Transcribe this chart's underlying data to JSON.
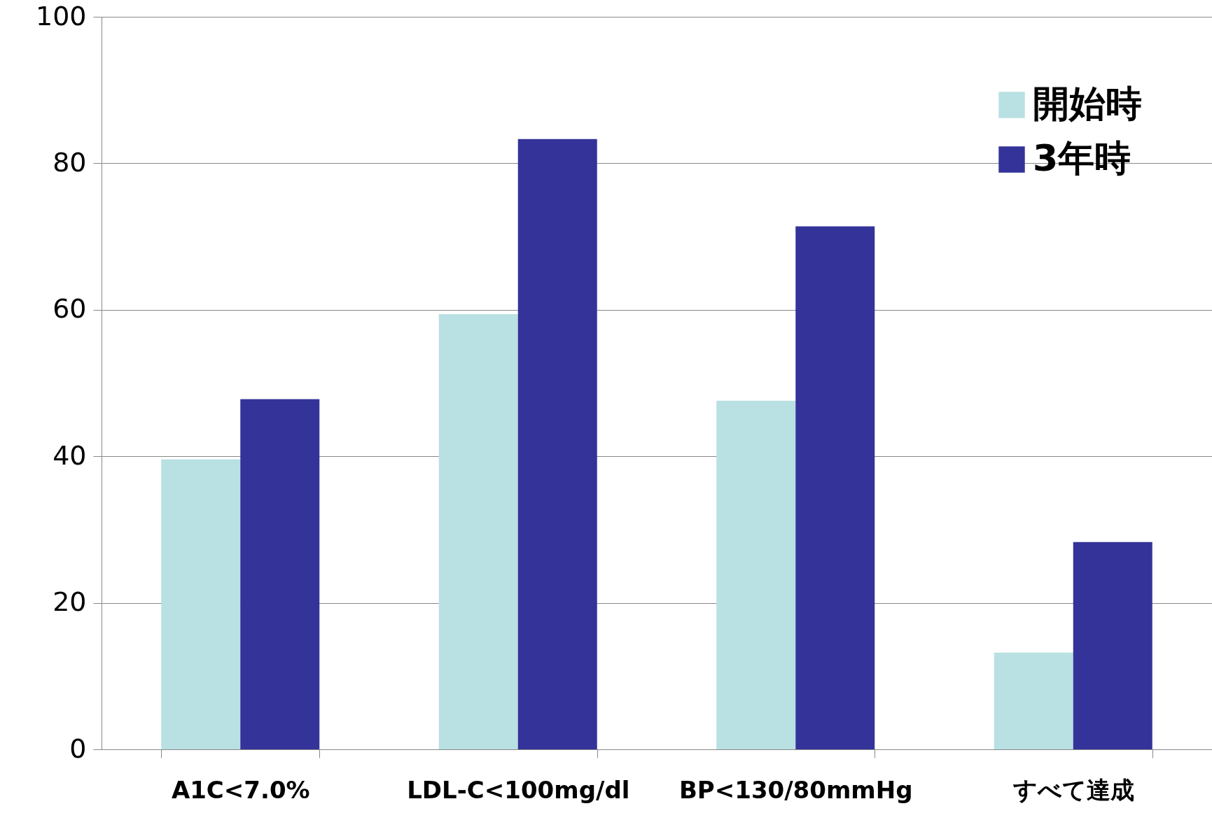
{
  "chart_data": {
    "type": "bar",
    "categories": [
      "A1C<7.0%",
      "LDL-C<100mg/dl",
      "BP<130/80mmHg",
      "すべて達成"
    ],
    "series": [
      {
        "name": "開始時",
        "color": "#b9e0e3",
        "values": [
          39.6,
          59.4,
          47.6,
          13.2
        ]
      },
      {
        "name": "3年時",
        "color": "#343399",
        "values": [
          47.8,
          83.3,
          71.4,
          28.3
        ]
      }
    ],
    "ylim": [
      0,
      100
    ],
    "yticks": [
      0,
      20,
      40,
      60,
      80,
      100
    ],
    "grid": "y",
    "legend": "top right"
  }
}
